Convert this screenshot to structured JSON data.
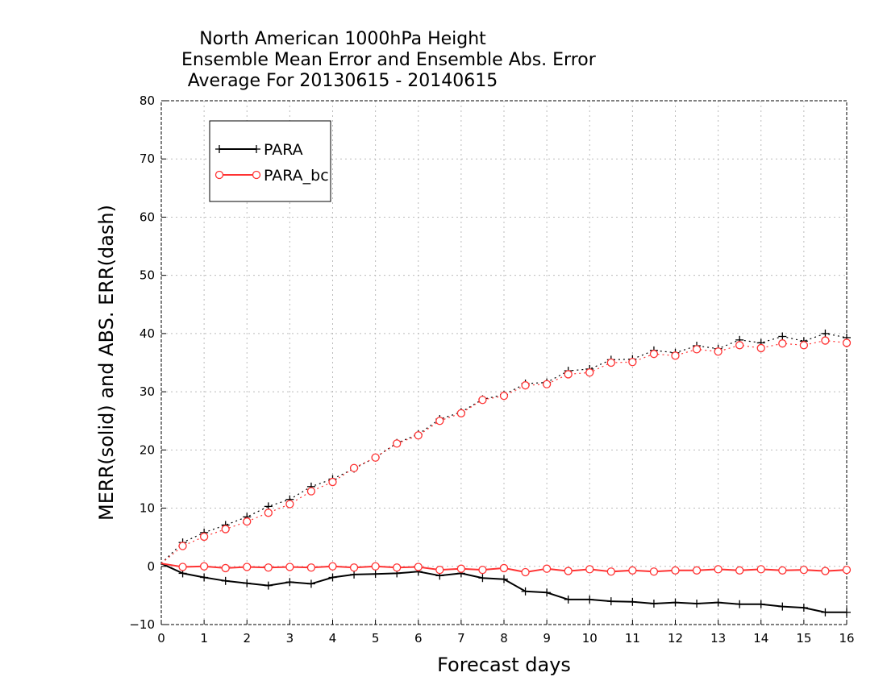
{
  "chart_data": {
    "type": "line",
    "title": [
      "North American 1000hPa Height",
      "Ensemble Mean Error and Ensemble Abs. Error",
      "Average For 20130615 - 20140615"
    ],
    "xlabel": "Forecast days",
    "ylabel": "MERR(solid) and ABS. ERR(dash)",
    "xlim": [
      0,
      16
    ],
    "ylim": [
      -10,
      80
    ],
    "xticks": [
      0,
      1,
      2,
      3,
      4,
      5,
      6,
      7,
      8,
      9,
      10,
      11,
      12,
      13,
      14,
      15,
      16
    ],
    "yticks": [
      -10,
      0,
      10,
      20,
      30,
      40,
      50,
      60,
      70,
      80
    ],
    "grid": true,
    "legend_position": "top-left",
    "x": [
      0,
      0.5,
      1,
      1.5,
      2,
      2.5,
      3,
      3.5,
      4,
      4.5,
      5,
      5.5,
      6,
      6.5,
      7,
      7.5,
      8,
      8.5,
      9,
      9.5,
      10,
      10.5,
      11,
      11.5,
      12,
      12.5,
      13,
      13.5,
      14,
      14.5,
      15,
      15.5,
      16
    ],
    "series": [
      {
        "name": "PARA",
        "color": "#000000",
        "marker": "plus",
        "merr_solid": [
          0.5,
          -1.2,
          -1.9,
          -2.5,
          -2.9,
          -3.3,
          -2.7,
          -3.0,
          -1.9,
          -1.4,
          -1.3,
          -1.2,
          -0.9,
          -1.6,
          -1.2,
          -2.0,
          -2.2,
          -4.3,
          -4.5,
          -5.7,
          -5.7,
          -6.0,
          -6.1,
          -6.4,
          -6.2,
          -6.4,
          -6.2,
          -6.5,
          -6.5,
          -6.9,
          -7.1,
          -7.9,
          -7.9
        ],
        "abs_err_dash": [
          0.5,
          4.1,
          5.8,
          7.1,
          8.5,
          10.3,
          11.5,
          13.7,
          15.0,
          16.8,
          18.7,
          21.2,
          22.7,
          25.3,
          26.5,
          28.7,
          29.5,
          31.4,
          31.6,
          33.6,
          33.9,
          35.5,
          35.6,
          37.1,
          36.7,
          37.9,
          37.4,
          38.9,
          38.4,
          39.5,
          38.7,
          40.0,
          39.3
        ]
      },
      {
        "name": "PARA_bc",
        "color": "#ff3333",
        "marker": "circle",
        "merr_solid": [
          0.5,
          -0.1,
          0.0,
          -0.3,
          -0.1,
          -0.2,
          -0.1,
          -0.2,
          0.0,
          -0.2,
          0.0,
          -0.2,
          -0.1,
          -0.6,
          -0.4,
          -0.6,
          -0.3,
          -1.0,
          -0.4,
          -0.8,
          -0.5,
          -0.9,
          -0.7,
          -0.9,
          -0.7,
          -0.7,
          -0.5,
          -0.7,
          -0.5,
          -0.7,
          -0.6,
          -0.8,
          -0.6
        ],
        "abs_err_dash": [
          0.5,
          3.5,
          5.1,
          6.4,
          7.7,
          9.2,
          10.7,
          12.9,
          14.5,
          16.9,
          18.7,
          21.1,
          22.5,
          25.0,
          26.3,
          28.6,
          29.3,
          31.1,
          31.3,
          33.0,
          33.3,
          35.0,
          35.1,
          36.5,
          36.2,
          37.3,
          36.9,
          38.0,
          37.5,
          38.3,
          38.0,
          38.8,
          38.4
        ]
      }
    ]
  }
}
